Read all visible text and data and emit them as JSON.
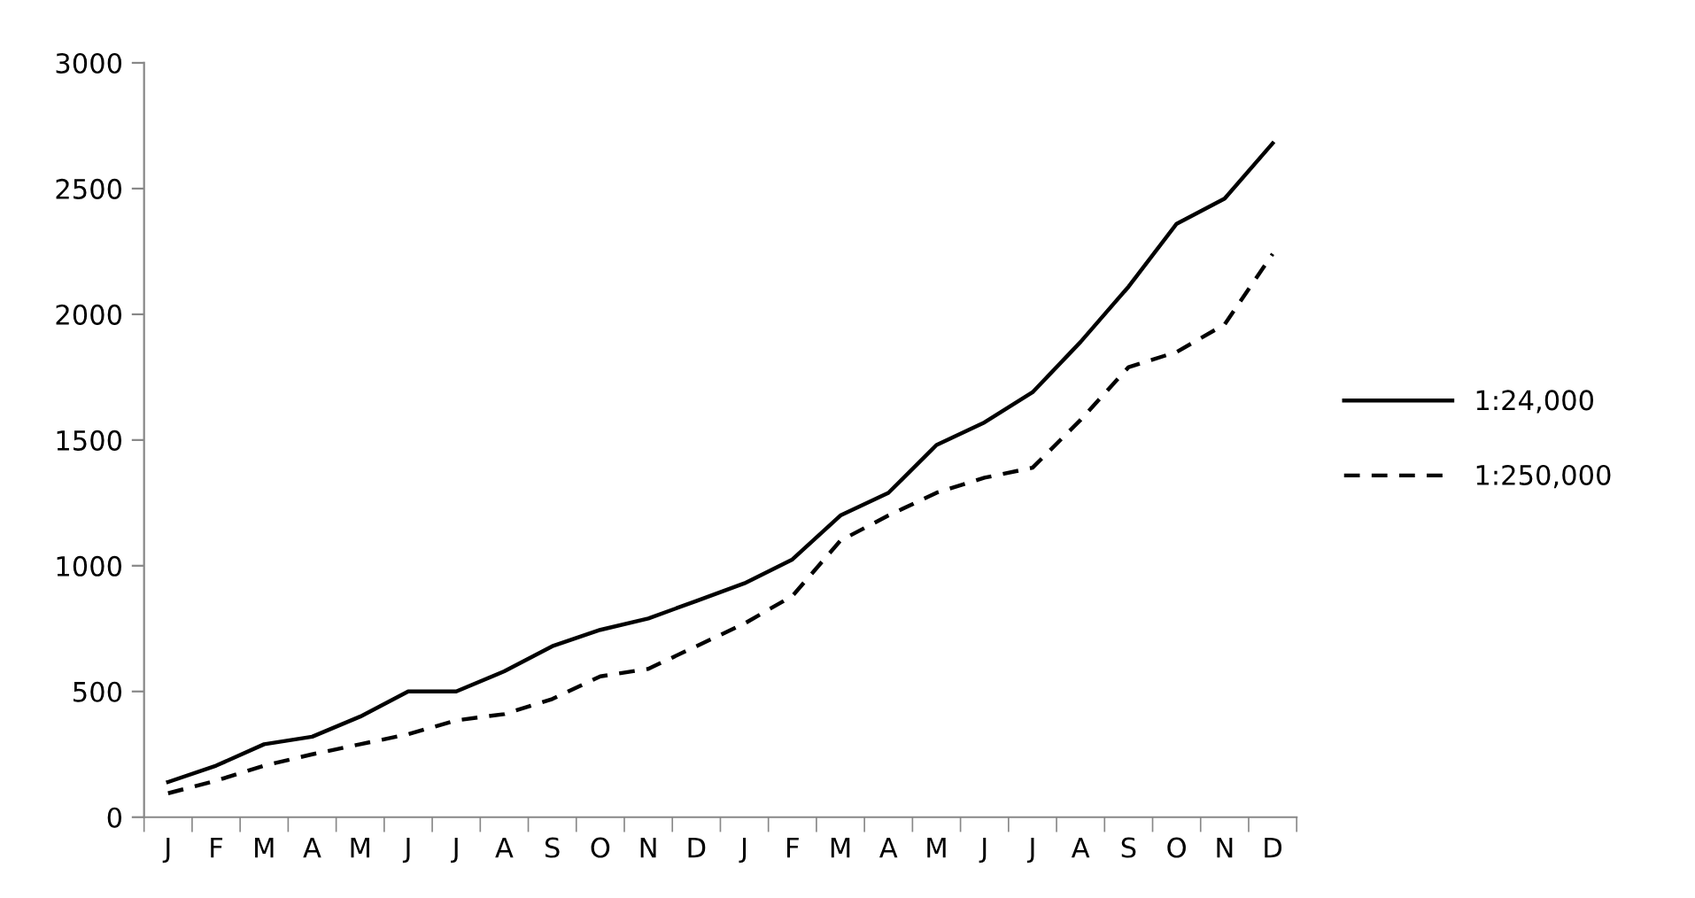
{
  "chart_data": {
    "type": "line",
    "categories": [
      "J",
      "F",
      "M",
      "A",
      "M",
      "J",
      "J",
      "A",
      "S",
      "O",
      "N",
      "D",
      "J",
      "F",
      "M",
      "A",
      "M",
      "J",
      "J",
      "A",
      "S",
      "O",
      "N",
      "D"
    ],
    "series": [
      {
        "name": "1:24,000",
        "color": "#000000",
        "line_style": "solid",
        "values": [
          140,
          205,
          290,
          320,
          400,
          500,
          500,
          580,
          680,
          745,
          790,
          860,
          930,
          1025,
          1200,
          1290,
          1480,
          1570,
          1690,
          1890,
          2110,
          2360,
          2460,
          2680
        ]
      },
      {
        "name": "1:250,000",
        "color": "#000000",
        "line_style": "dashed",
        "values": [
          95,
          145,
          205,
          250,
          290,
          330,
          385,
          410,
          470,
          560,
          590,
          680,
          770,
          880,
          1100,
          1200,
          1290,
          1350,
          1390,
          1580,
          1790,
          1850,
          1960,
          2240
        ]
      }
    ],
    "ylim": [
      0,
      3000
    ],
    "yticks": [
      0,
      500,
      1000,
      1500,
      2000,
      2500,
      3000
    ],
    "grid": false,
    "legend": "right",
    "marker": "none"
  }
}
